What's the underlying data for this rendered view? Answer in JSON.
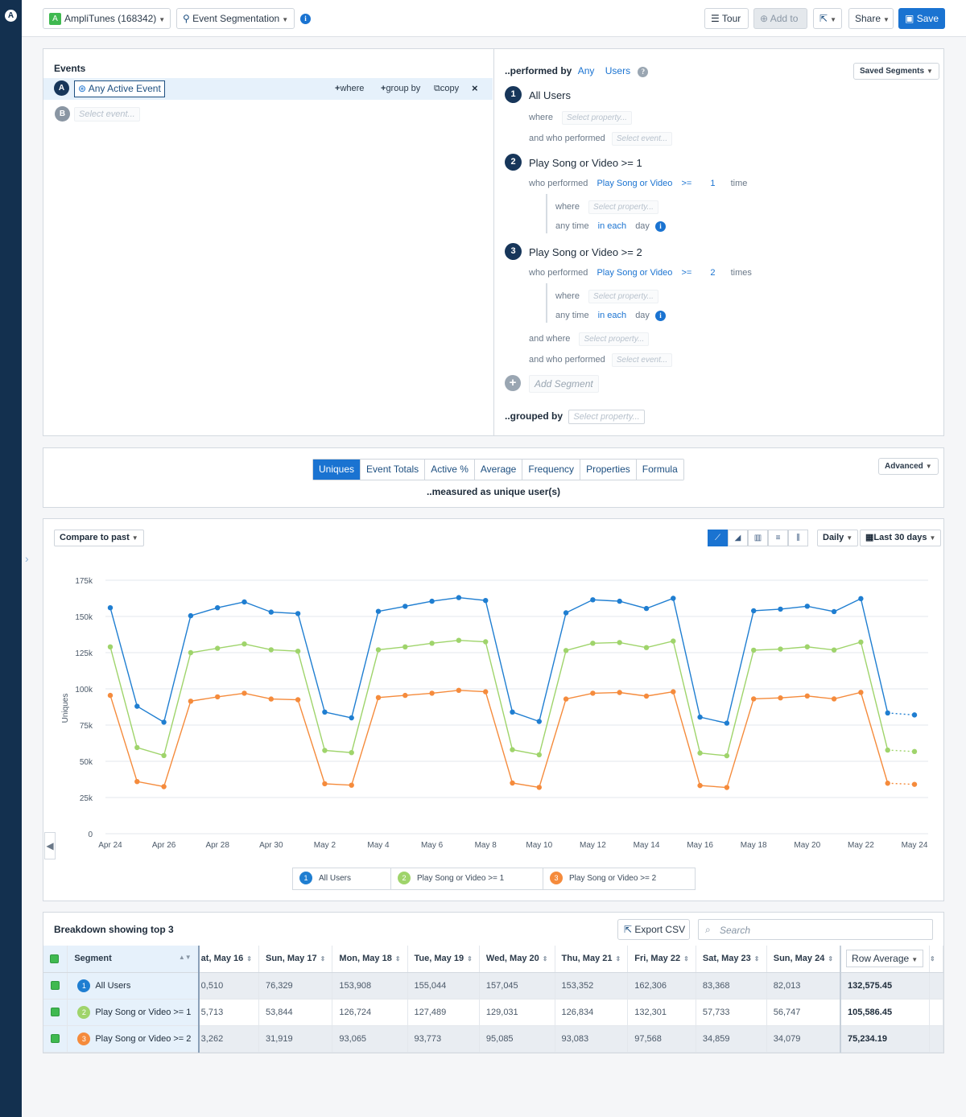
{
  "topbar": {
    "project_badge": "A",
    "project": "AmpliTunes (168342)",
    "chart_type": "Event Segmentation",
    "tour": "Tour",
    "add_to": "Add to",
    "share": "Share",
    "save": "Save"
  },
  "events": {
    "heading": "Events",
    "rows": [
      {
        "letter": "A",
        "name": "Any Active Event"
      },
      {
        "letter": "B",
        "placeholder": "Select event..."
      }
    ],
    "actions": {
      "where": "where",
      "group_by": "group by",
      "copy": "copy"
    }
  },
  "segments": {
    "performed_by": "..performed by",
    "any": "Any",
    "users": "Users",
    "saved_segments": "Saved Segments",
    "where": "where",
    "who_performed": "who performed",
    "and_who_performed": "and who performed",
    "and_where": "and where",
    "any_time": "any time",
    "in_each": "in each",
    "day": "day",
    "select_property": "Select property...",
    "select_event": "Select event...",
    "list": [
      {
        "num": "1",
        "name": "All Users"
      },
      {
        "num": "2",
        "name": "Play Song or Video >= 1",
        "event": "Play Song or Video",
        "op": ">=",
        "count": "1",
        "unit": "time"
      },
      {
        "num": "3",
        "name": "Play Song or Video >= 2",
        "event": "Play Song or Video",
        "op": ">=",
        "count": "2",
        "unit": "times"
      }
    ],
    "add_segment": "Add Segment",
    "grouped_by": "..grouped by"
  },
  "measure": {
    "tabs": [
      "Uniques",
      "Event Totals",
      "Active %",
      "Average",
      "Frequency",
      "Properties",
      "Formula"
    ],
    "active_tab": "Uniques",
    "caption": "..measured as unique user(s)",
    "advanced": "Advanced"
  },
  "chart_controls": {
    "compare": "Compare to past",
    "interval": "Daily",
    "range": "Last 30 days"
  },
  "chart_data": {
    "type": "line",
    "ylabel": "Uniques",
    "ylim": [
      0,
      175000
    ],
    "yticks": [
      "0",
      "25k",
      "50k",
      "75k",
      "100k",
      "125k",
      "150k",
      "175k"
    ],
    "x": [
      "Apr 24",
      "Apr 25",
      "Apr 26",
      "Apr 27",
      "Apr 28",
      "Apr 29",
      "Apr 30",
      "May 1",
      "May 2",
      "May 3",
      "May 4",
      "May 5",
      "May 6",
      "May 7",
      "May 8",
      "May 9",
      "May 10",
      "May 11",
      "May 12",
      "May 13",
      "May 14",
      "May 15",
      "May 16",
      "May 17",
      "May 18",
      "May 19",
      "May 20",
      "May 21",
      "May 22",
      "May 23",
      "May 24"
    ],
    "xtick_labels": [
      "Apr 24",
      "Apr 26",
      "Apr 28",
      "Apr 30",
      "May 2",
      "May 4",
      "May 6",
      "May 8",
      "May 10",
      "May 12",
      "May 14",
      "May 16",
      "May 18",
      "May 20",
      "May 22",
      "May 24"
    ],
    "series": [
      {
        "name": "All Users",
        "num": "1",
        "color": "#1f7ed1",
        "values": [
          156000,
          88000,
          77000,
          150500,
          156000,
          160000,
          153000,
          152000,
          84000,
          80000,
          153500,
          157000,
          160500,
          163000,
          161000,
          84000,
          77500,
          152500,
          161500,
          160500,
          155500,
          162500,
          80500,
          76329,
          153908,
          155044,
          157045,
          153352,
          162306,
          83368,
          82013
        ]
      },
      {
        "name": "Play Song or Video >= 1",
        "num": "2",
        "color": "#9fd46b",
        "values": [
          129000,
          59500,
          54000,
          125000,
          128000,
          131000,
          127000,
          126000,
          57500,
          56000,
          127000,
          129000,
          131500,
          133500,
          132500,
          58000,
          54500,
          126500,
          131500,
          132000,
          128500,
          133000,
          55713,
          53844,
          126724,
          127489,
          129031,
          126834,
          132301,
          57733,
          56747
        ]
      },
      {
        "name": "Play Song or Video >= 2",
        "num": "3",
        "color": "#f58b3c",
        "values": [
          95500,
          36000,
          32500,
          91500,
          94500,
          97000,
          93000,
          92500,
          34500,
          33500,
          94000,
          95500,
          97000,
          99000,
          98000,
          35000,
          32000,
          93000,
          97000,
          97500,
          95000,
          98000,
          33262,
          31919,
          93065,
          93773,
          95085,
          93083,
          97568,
          34859,
          34079
        ]
      }
    ]
  },
  "breakdown": {
    "title": "Breakdown showing top 3",
    "export": "Export CSV",
    "search_placeholder": "Search",
    "segment_header": "Segment",
    "row_average_header": "Row Average",
    "columns": [
      "at, May 16",
      "Sun, May 17",
      "Mon, May 18",
      "Tue, May 19",
      "Wed, May 20",
      "Thu, May 21",
      "Fri, May 22",
      "Sat, May 23",
      "Sun, May 24"
    ],
    "rows": [
      {
        "num": "1",
        "name": "All Users",
        "color": "#1f7ed1",
        "cells": [
          "0,510",
          "76,329",
          "153,908",
          "155,044",
          "157,045",
          "153,352",
          "162,306",
          "83,368",
          "82,013"
        ],
        "avg": "132,575.45"
      },
      {
        "num": "2",
        "name": "Play Song or Video >= 1",
        "color": "#9fd46b",
        "cells": [
          "5,713",
          "53,844",
          "126,724",
          "127,489",
          "129,031",
          "126,834",
          "132,301",
          "57,733",
          "56,747"
        ],
        "avg": "105,586.45"
      },
      {
        "num": "3",
        "name": "Play Song or Video >= 2",
        "color": "#f58b3c",
        "cells": [
          "3,262",
          "31,919",
          "93,065",
          "93,773",
          "95,085",
          "93,083",
          "97,568",
          "34,859",
          "34,079"
        ],
        "avg": "75,234.19"
      }
    ]
  }
}
